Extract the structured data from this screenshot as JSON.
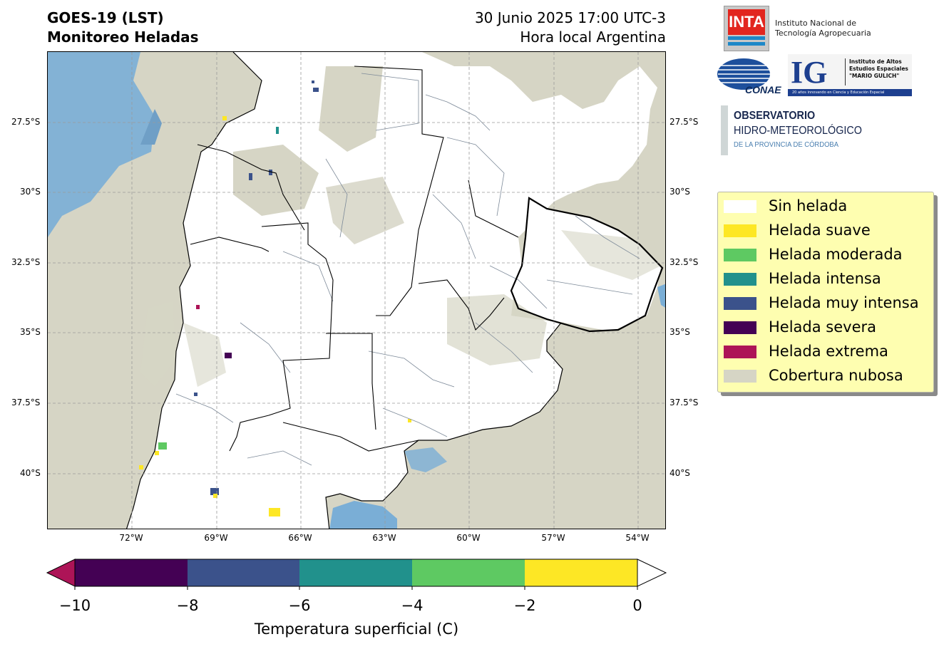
{
  "header": {
    "title_line1": "GOES-19 (LST)",
    "title_line2": "Monitoreo Heladas",
    "datetime": "30 Junio 2025 17:00 UTC-3",
    "timezone": "Hora local Argentina"
  },
  "map": {
    "lat_labels": [
      "27.5°S",
      "30°S",
      "32.5°S",
      "35°S",
      "37.5°S",
      "40°S"
    ],
    "lon_labels": [
      "72°W",
      "69°W",
      "66°W",
      "63°W",
      "60°W",
      "57°W",
      "54°W"
    ],
    "colors": {
      "cloud": "#d6d5c5",
      "no_frost": "#ffffff",
      "water": "#7aaed6",
      "border": "#000000",
      "department_lines": "#7d8a99",
      "grid": "#9a9a9a"
    }
  },
  "legend": {
    "items": [
      {
        "label": "Sin helada",
        "color": "#ffffff"
      },
      {
        "label": "Helada suave",
        "color": "#fde725"
      },
      {
        "label": "Helada moderada",
        "color": "#5ec962"
      },
      {
        "label": "Helada intensa",
        "color": "#21918c"
      },
      {
        "label": "Helada muy intensa",
        "color": "#3b528b"
      },
      {
        "label": "Helada severa",
        "color": "#440154"
      },
      {
        "label": "Helada extrema",
        "color": "#ad1457"
      },
      {
        "label": "Cobertura nubosa",
        "color": "#d6d5c5"
      }
    ]
  },
  "logos": {
    "inta_mark": "INTA",
    "inta_name_line1": "Instituto Nacional de",
    "inta_name_line2": "Tecnología Agropecuaria",
    "conae": "CONAE",
    "ig_mark": "IG",
    "ig_line1": "Instituto de Altos",
    "ig_line2": "Estudios Espaciales",
    "ig_line3": "\"MARIO GULICH\"",
    "ig_tagline": "20 años innovando en Ciencia y Educación Espacial",
    "obs_line1": "OBSERVATORIO",
    "obs_line2": "HIDRO-METEOROLÓGICO",
    "obs_line3": "DE LA PROVINCIA DE CÓRDOBA"
  },
  "colorbar": {
    "ticks": [
      "−10",
      "−8",
      "−6",
      "−4",
      "−2",
      "0"
    ],
    "label": "Temperatura superficial (C)",
    "bins": [
      {
        "from": -10,
        "to": -8,
        "color": "#440154"
      },
      {
        "from": -8,
        "to": -6,
        "color": "#3b528b"
      },
      {
        "from": -6,
        "to": -4,
        "color": "#21918c"
      },
      {
        "from": -4,
        "to": -2,
        "color": "#5ec962"
      },
      {
        "from": -2,
        "to": 0,
        "color": "#fde725"
      }
    ],
    "under_color": "#ad1457",
    "over_color": "#ffffff"
  }
}
